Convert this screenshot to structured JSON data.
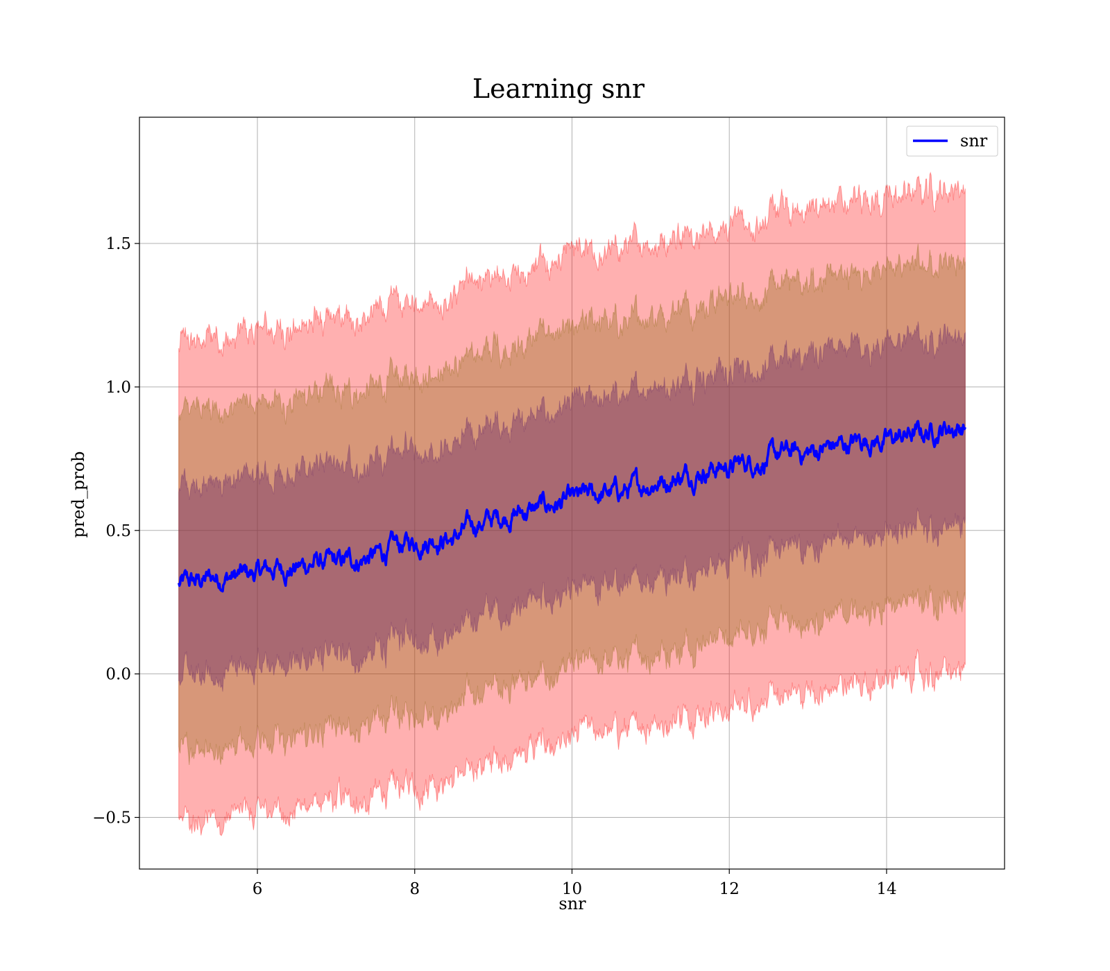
{
  "chart_data": {
    "type": "line",
    "title": "Learning snr",
    "xlabel": "snr",
    "ylabel": "pred_prob",
    "xlim": [
      4.5,
      15.5
    ],
    "ylim": [
      -0.68,
      1.94
    ],
    "xticks": [
      6,
      8,
      10,
      12,
      14
    ],
    "yticks": [
      -0.5,
      0.0,
      0.5,
      1.0,
      1.5
    ],
    "ytick_labels": [
      "−0.5",
      "0.0",
      "0.5",
      "1.0",
      "1.5"
    ],
    "grid": true,
    "legend": {
      "position": "top-right",
      "entries": [
        "snr"
      ]
    },
    "colors": {
      "line": "#0000ff",
      "band_outer": "#ff0000",
      "band_middle": "#8b6914",
      "band_inner": "#6a2a6a"
    },
    "bands": [
      {
        "sigma": 3,
        "half_width": 0.84,
        "color": "#ff0000",
        "opacity": 0.31
      },
      {
        "sigma": 2,
        "half_width": 0.59,
        "color": "#8b6914",
        "opacity": 0.35
      },
      {
        "sigma": 1,
        "half_width": 0.33,
        "color": "#6a2a6a",
        "opacity": 0.42
      }
    ],
    "series": [
      {
        "name": "snr",
        "x": [
          5.0,
          5.25,
          5.5,
          5.75,
          6.0,
          6.25,
          6.5,
          6.75,
          7.0,
          7.25,
          7.5,
          7.75,
          8.0,
          8.25,
          8.5,
          8.75,
          9.0,
          9.25,
          9.5,
          9.75,
          10.0,
          10.25,
          10.5,
          10.75,
          11.0,
          11.25,
          11.5,
          11.75,
          12.0,
          12.25,
          12.5,
          12.75,
          13.0,
          13.25,
          13.5,
          13.75,
          14.0,
          14.25,
          14.5,
          14.75,
          15.0
        ],
        "y": [
          0.31,
          0.32,
          0.34,
          0.34,
          0.35,
          0.37,
          0.37,
          0.39,
          0.38,
          0.4,
          0.41,
          0.44,
          0.46,
          0.48,
          0.47,
          0.52,
          0.54,
          0.56,
          0.57,
          0.59,
          0.6,
          0.62,
          0.63,
          0.64,
          0.67,
          0.68,
          0.7,
          0.72,
          0.72,
          0.74,
          0.75,
          0.77,
          0.77,
          0.79,
          0.8,
          0.82,
          0.81,
          0.83,
          0.84,
          0.86,
          0.86
        ]
      }
    ]
  }
}
